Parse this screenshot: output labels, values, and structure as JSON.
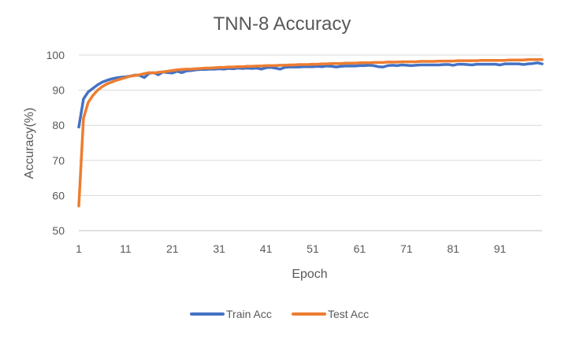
{
  "chart_data": {
    "type": "line",
    "title": "TNN-8 Accuracy",
    "xlabel": "Epoch",
    "ylabel": "Accuracy(%)",
    "xlim": [
      1,
      100
    ],
    "ylim": [
      50,
      100
    ],
    "x_ticks": [
      1,
      11,
      21,
      31,
      41,
      51,
      61,
      71,
      81,
      91
    ],
    "y_ticks": [
      50,
      60,
      70,
      80,
      90,
      100
    ],
    "grid": true,
    "legend": "bottom-center",
    "x": [
      1,
      2,
      3,
      4,
      5,
      6,
      7,
      8,
      9,
      10,
      11,
      12,
      13,
      14,
      15,
      16,
      17,
      18,
      19,
      20,
      21,
      22,
      23,
      24,
      25,
      26,
      27,
      28,
      29,
      30,
      31,
      32,
      33,
      34,
      35,
      36,
      37,
      38,
      39,
      40,
      41,
      42,
      43,
      44,
      45,
      46,
      47,
      48,
      49,
      50,
      51,
      52,
      53,
      54,
      55,
      56,
      57,
      58,
      59,
      60,
      61,
      62,
      63,
      64,
      65,
      66,
      67,
      68,
      69,
      70,
      71,
      72,
      73,
      74,
      75,
      76,
      77,
      78,
      79,
      80,
      81,
      82,
      83,
      84,
      85,
      86,
      87,
      88,
      89,
      90,
      91,
      92,
      93,
      94,
      95,
      96,
      97,
      98,
      99,
      100
    ],
    "series": [
      {
        "name": "Train Acc",
        "color": "#4472C4",
        "values": [
          79.5,
          87.5,
          89.5,
          90.5,
          91.5,
          92.3,
          92.8,
          93.2,
          93.5,
          93.7,
          93.8,
          94.0,
          94.3,
          94.2,
          93.6,
          94.8,
          95.0,
          94.4,
          95.2,
          95.0,
          94.9,
          95.4,
          95.0,
          95.5,
          95.6,
          95.8,
          95.9,
          95.9,
          96.0,
          96.0,
          96.1,
          96.0,
          96.2,
          96.1,
          96.3,
          96.2,
          96.3,
          96.2,
          96.3,
          96.0,
          96.4,
          96.5,
          96.3,
          96.0,
          96.5,
          96.6,
          96.6,
          96.6,
          96.7,
          96.7,
          96.7,
          96.8,
          96.7,
          96.9,
          96.8,
          96.6,
          96.8,
          96.9,
          96.9,
          96.9,
          97.0,
          97.0,
          97.1,
          97.0,
          96.7,
          96.6,
          97.0,
          97.1,
          97.0,
          97.2,
          97.1,
          97.0,
          97.1,
          97.2,
          97.2,
          97.2,
          97.2,
          97.2,
          97.3,
          97.3,
          97.1,
          97.4,
          97.4,
          97.3,
          97.2,
          97.4,
          97.4,
          97.4,
          97.4,
          97.4,
          97.2,
          97.5,
          97.5,
          97.5,
          97.5,
          97.3,
          97.5,
          97.6,
          97.8,
          97.5
        ]
      },
      {
        "name": "Test Acc",
        "color": "#ED7D31",
        "values": [
          57.0,
          82.0,
          86.5,
          88.5,
          90.0,
          91.0,
          91.8,
          92.3,
          92.8,
          93.2,
          93.6,
          94.0,
          94.2,
          94.4,
          94.7,
          95.0,
          94.9,
          95.1,
          95.2,
          95.4,
          95.6,
          95.8,
          95.9,
          96.0,
          96.0,
          96.1,
          96.2,
          96.3,
          96.3,
          96.4,
          96.5,
          96.5,
          96.6,
          96.6,
          96.7,
          96.7,
          96.8,
          96.8,
          96.9,
          96.9,
          97.0,
          97.0,
          97.0,
          97.1,
          97.1,
          97.2,
          97.2,
          97.3,
          97.3,
          97.3,
          97.4,
          97.4,
          97.5,
          97.5,
          97.6,
          97.6,
          97.6,
          97.7,
          97.7,
          97.7,
          97.8,
          97.8,
          97.8,
          97.9,
          97.9,
          97.9,
          98.0,
          98.0,
          98.0,
          98.1,
          98.1,
          98.1,
          98.1,
          98.2,
          98.2,
          98.2,
          98.2,
          98.3,
          98.3,
          98.3,
          98.3,
          98.4,
          98.4,
          98.4,
          98.4,
          98.4,
          98.5,
          98.5,
          98.5,
          98.5,
          98.5,
          98.5,
          98.6,
          98.6,
          98.6,
          98.6,
          98.7,
          98.7,
          98.7,
          98.7
        ]
      }
    ]
  }
}
